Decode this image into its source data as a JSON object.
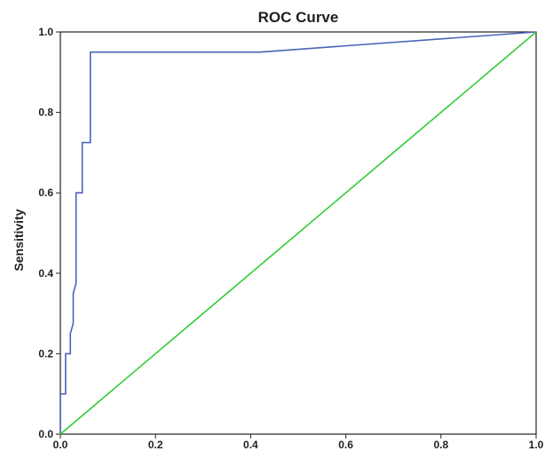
{
  "chart_data": {
    "type": "line",
    "title": "ROC Curve",
    "xlabel": "",
    "ylabel": "Sensitivity",
    "xlim": [
      0,
      1
    ],
    "ylim": [
      0,
      1
    ],
    "x_ticks": [
      "0.0",
      "0.2",
      "0.4",
      "0.6",
      "0.8",
      "1.0"
    ],
    "y_ticks": [
      "0.0",
      "0.2",
      "0.4",
      "0.6",
      "0.8",
      "1.0"
    ],
    "grid": false,
    "legend": "none",
    "series": [
      {
        "color": "#4a64b8",
        "step_roc": true,
        "points": [
          [
            0.0,
            0.0
          ],
          [
            0.0,
            0.1
          ],
          [
            0.011,
            0.1
          ],
          [
            0.011,
            0.2
          ],
          [
            0.021,
            0.2
          ],
          [
            0.021,
            0.25
          ],
          [
            0.027,
            0.275
          ],
          [
            0.027,
            0.35
          ],
          [
            0.033,
            0.375
          ],
          [
            0.033,
            0.6
          ],
          [
            0.046,
            0.6
          ],
          [
            0.046,
            0.725
          ],
          [
            0.063,
            0.725
          ],
          [
            0.063,
            0.95
          ],
          [
            0.42,
            0.95
          ],
          [
            1.0,
            1.0
          ]
        ]
      },
      {
        "color": "#33cc33",
        "reference_line": true,
        "points": [
          [
            0.0,
            0.0
          ],
          [
            1.0,
            1.0
          ]
        ]
      }
    ]
  }
}
